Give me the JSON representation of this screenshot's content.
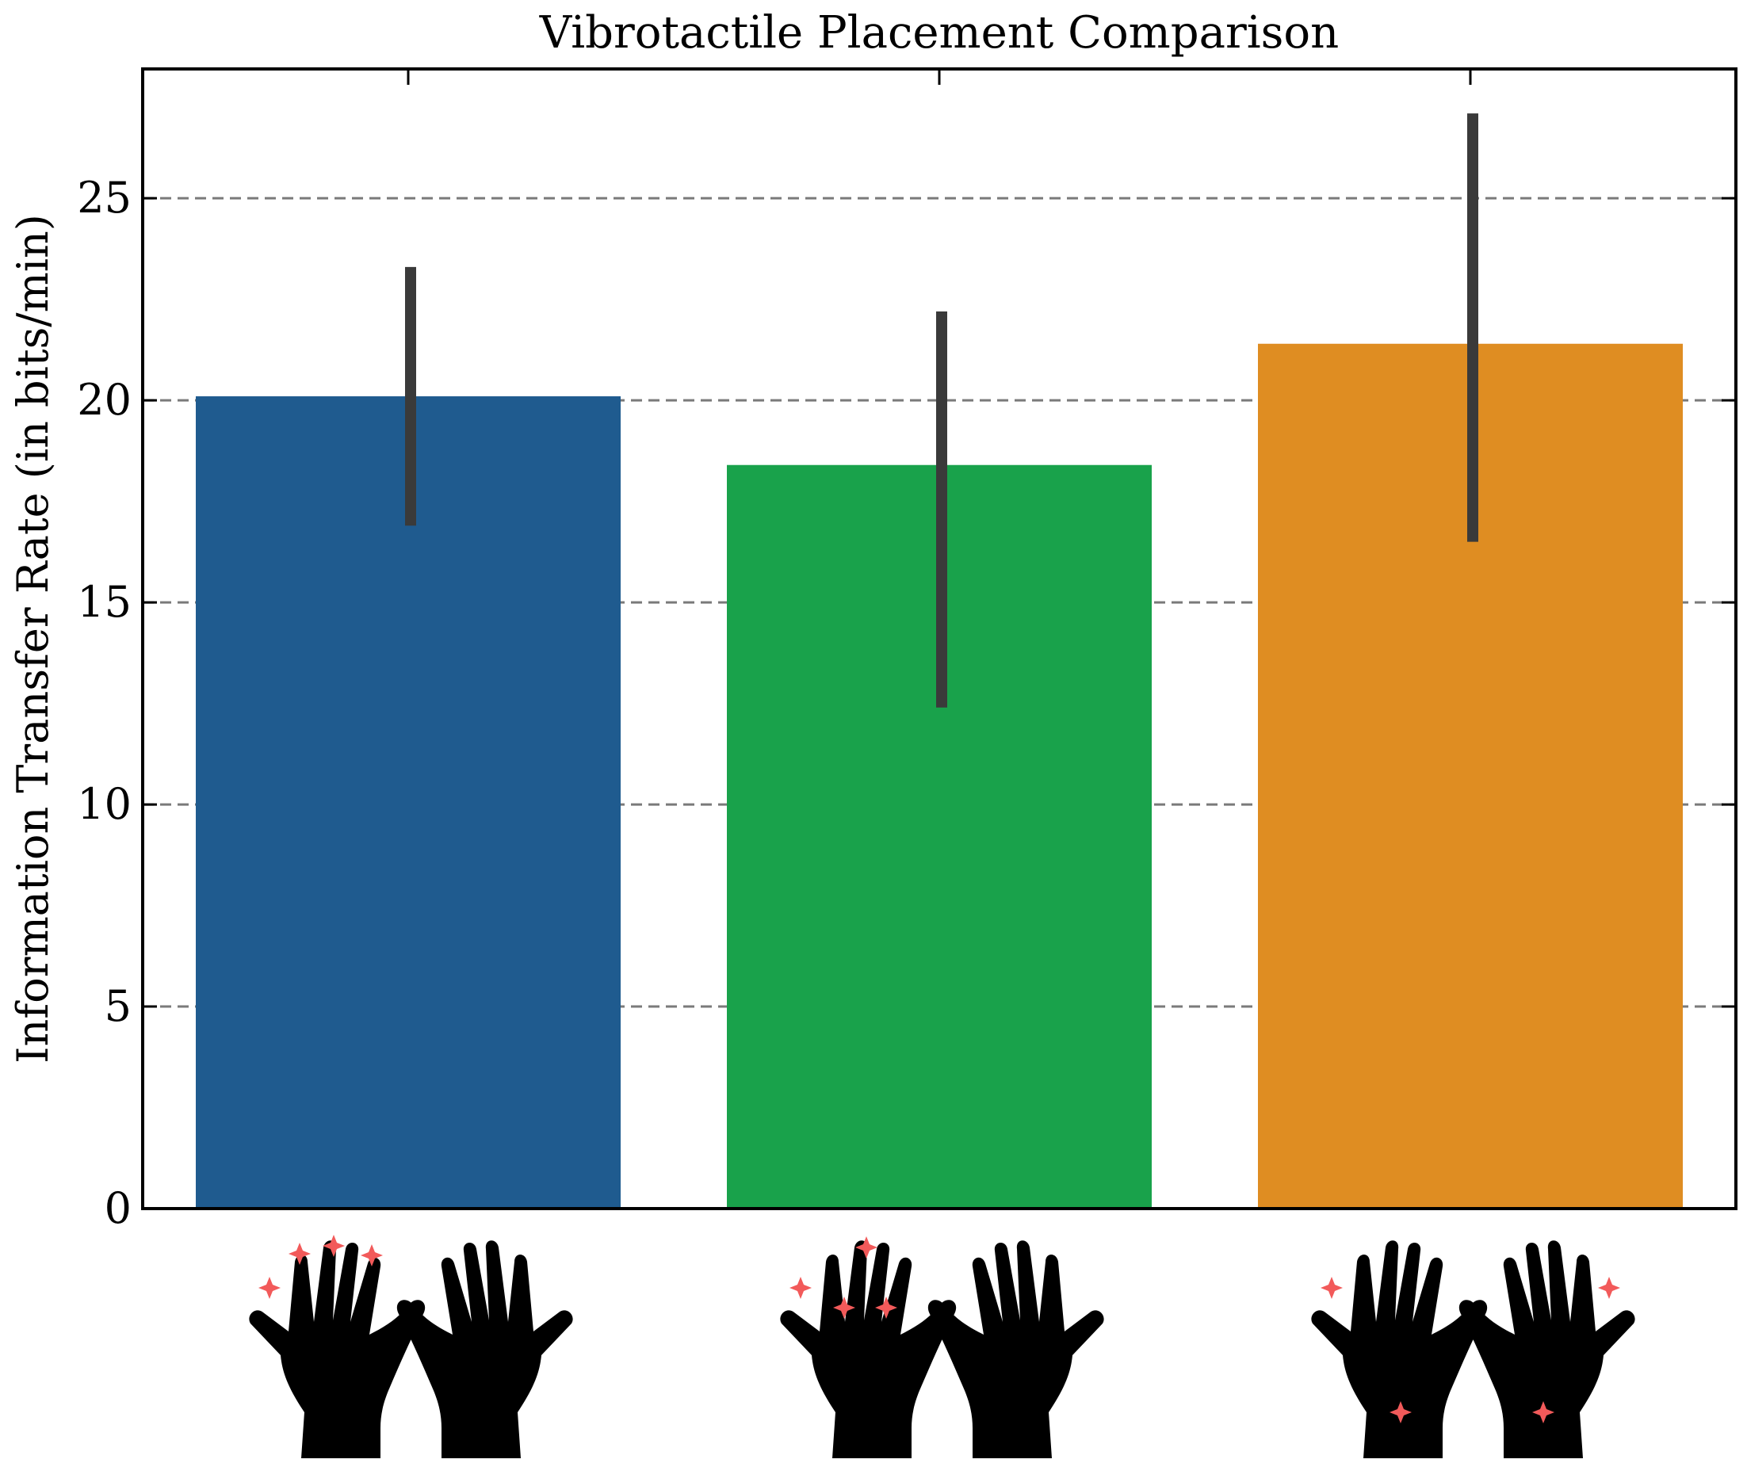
{
  "chart_data": {
    "type": "bar",
    "title": "Vibrotactile Placement Comparison",
    "xlabel": "",
    "ylabel": "Information Transfer Rate (in bits/min)",
    "ylim": [
      0,
      28.2
    ],
    "yticks": [
      0,
      5,
      10,
      15,
      20,
      25
    ],
    "grid": "y-dashed",
    "categories": [
      "",
      "",
      ""
    ],
    "values": [
      20.1,
      18.4,
      21.4
    ],
    "errors": {
      "lower": [
        16.9,
        12.4,
        16.5
      ],
      "upper": [
        23.3,
        22.2,
        27.1
      ]
    },
    "bar_colors": [
      "#1f5b8f",
      "#19a24b",
      "#df8d22"
    ],
    "error_color": "#3a3a3a",
    "grid_color": "#7a7a7a",
    "marker_color": "#f25a5a",
    "category_icons": [
      {
        "icon": "two-hands-fingertips-icon",
        "marked_hand": "left",
        "marker_sites": [
          "index-tip",
          "middle-tip",
          "ring-tip",
          "pinky-tip"
        ]
      },
      {
        "icon": "two-hands-mixed-sites-icon",
        "marked_hand": "left",
        "marker_sites": [
          "pinky-tip",
          "middle-tip",
          "index-base",
          "middle-base"
        ]
      },
      {
        "icon": "two-hands-wrist-pinky-icon",
        "marked_hand": "both",
        "marker_sites": [
          "pinky-tip",
          "wrist"
        ]
      }
    ]
  }
}
